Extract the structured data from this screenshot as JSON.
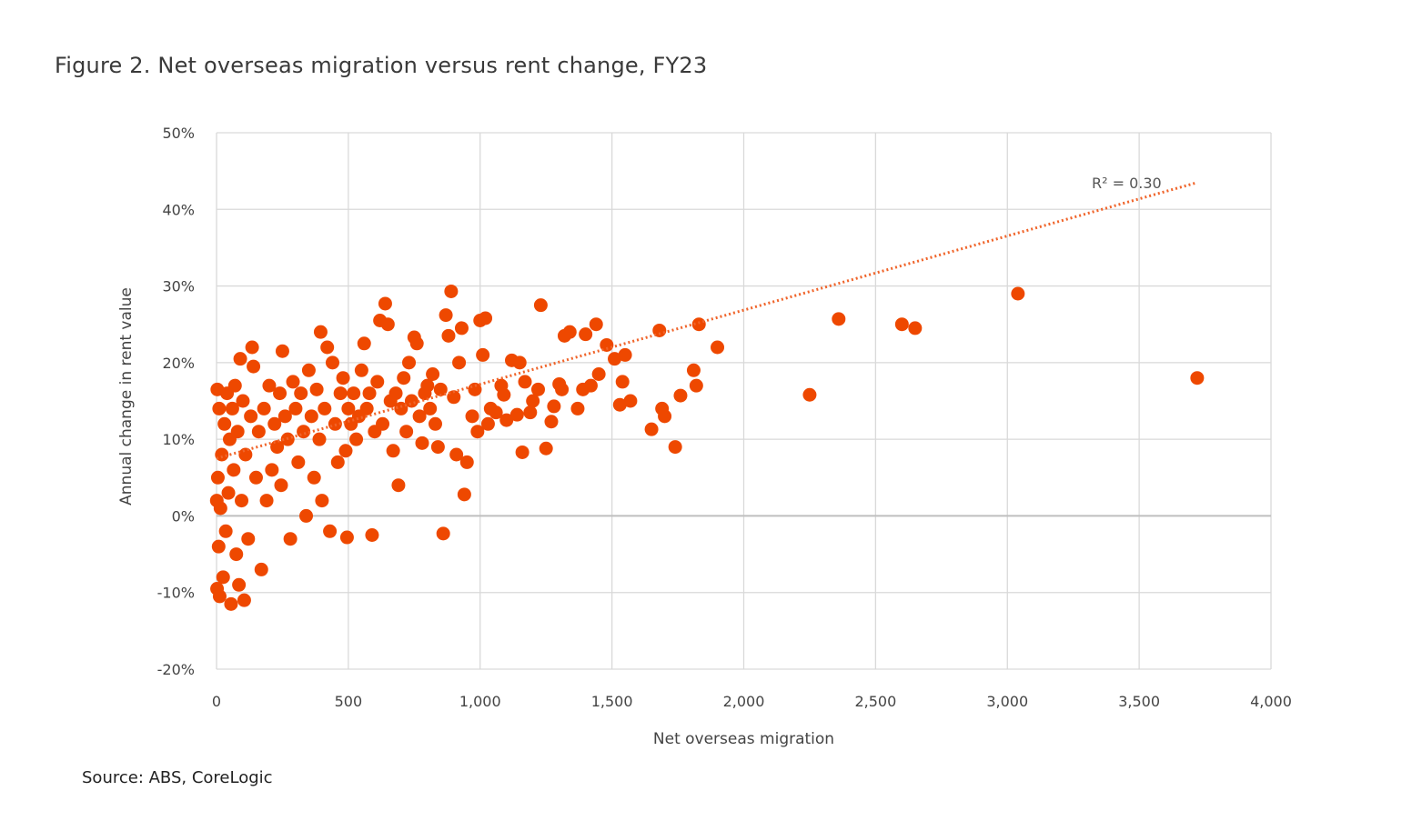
{
  "title": "Figure 2. Net overseas migration versus rent change, FY23",
  "source": "Source: ABS, CoreLogic",
  "colors": {
    "points": "#ee4800",
    "trendline": "#f0642a",
    "grid": "#d9d9d9",
    "zero_line": "#bfbfbf"
  },
  "chart_data": {
    "type": "scatter",
    "xlabel": "Net overseas migration",
    "ylabel": "Annual change in rent value",
    "xlim": [
      0,
      4000
    ],
    "ylim": [
      -0.2,
      0.5
    ],
    "x_ticks": [
      0,
      500,
      1000,
      1500,
      2000,
      2500,
      3000,
      3500,
      4000
    ],
    "x_tick_labels": [
      "0",
      "500",
      "1,000",
      "1,500",
      "2,000",
      "2,500",
      "3,000",
      "3,500",
      "4,000"
    ],
    "y_ticks": [
      -0.2,
      -0.1,
      0,
      0.1,
      0.2,
      0.3,
      0.4,
      0.5
    ],
    "y_tick_labels": [
      "-20%",
      "-10%",
      "0%",
      "10%",
      "20%",
      "30%",
      "40%",
      "50%"
    ],
    "grid": true,
    "trendline": {
      "type": "linear",
      "style": "dotted",
      "x": [
        0,
        3720
      ],
      "y": [
        0.075,
        0.435
      ],
      "label": "R² = 0.30"
    },
    "series": [
      {
        "points": [
          [
            3720,
            0.18
          ],
          [
            3040,
            0.29
          ],
          [
            2650,
            0.245
          ],
          [
            2600,
            0.25
          ],
          [
            2360,
            0.257
          ],
          [
            2250,
            0.158
          ],
          [
            1900,
            0.22
          ],
          [
            1830,
            0.25
          ],
          [
            1820,
            0.17
          ],
          [
            1810,
            0.19
          ],
          [
            1760,
            0.157
          ],
          [
            1740,
            0.09
          ],
          [
            1700,
            0.13
          ],
          [
            1690,
            0.14
          ],
          [
            1680,
            0.242
          ],
          [
            1650,
            0.113
          ],
          [
            1570,
            0.15
          ],
          [
            1550,
            0.21
          ],
          [
            1540,
            0.175
          ],
          [
            1530,
            0.145
          ],
          [
            1510,
            0.205
          ],
          [
            1480,
            0.223
          ],
          [
            1450,
            0.185
          ],
          [
            1440,
            0.25
          ],
          [
            1420,
            0.17
          ],
          [
            1400,
            0.237
          ],
          [
            1390,
            0.165
          ],
          [
            1370,
            0.14
          ],
          [
            1340,
            0.24
          ],
          [
            1320,
            0.235
          ],
          [
            1310,
            0.165
          ],
          [
            1300,
            0.172
          ],
          [
            1280,
            0.143
          ],
          [
            1270,
            0.123
          ],
          [
            1250,
            0.088
          ],
          [
            1230,
            0.275
          ],
          [
            1220,
            0.165
          ],
          [
            1200,
            0.15
          ],
          [
            1190,
            0.135
          ],
          [
            1170,
            0.175
          ],
          [
            1160,
            0.083
          ],
          [
            1150,
            0.2
          ],
          [
            1140,
            0.132
          ],
          [
            1120,
            0.203
          ],
          [
            1100,
            0.125
          ],
          [
            1090,
            0.158
          ],
          [
            1080,
            0.17
          ],
          [
            1060,
            0.135
          ],
          [
            1040,
            0.14
          ],
          [
            1030,
            0.12
          ],
          [
            1020,
            0.258
          ],
          [
            1010,
            0.21
          ],
          [
            1000,
            0.255
          ],
          [
            990,
            0.11
          ],
          [
            980,
            0.165
          ],
          [
            970,
            0.13
          ],
          [
            950,
            0.07
          ],
          [
            940,
            0.028
          ],
          [
            930,
            0.245
          ],
          [
            920,
            0.2
          ],
          [
            910,
            0.08
          ],
          [
            900,
            0.155
          ],
          [
            890,
            0.293
          ],
          [
            880,
            0.235
          ],
          [
            870,
            0.262
          ],
          [
            860,
            -0.023
          ],
          [
            850,
            0.165
          ],
          [
            840,
            0.09
          ],
          [
            830,
            0.12
          ],
          [
            820,
            0.185
          ],
          [
            810,
            0.14
          ],
          [
            800,
            0.17
          ],
          [
            790,
            0.16
          ],
          [
            780,
            0.095
          ],
          [
            770,
            0.13
          ],
          [
            760,
            0.225
          ],
          [
            750,
            0.233
          ],
          [
            740,
            0.15
          ],
          [
            730,
            0.2
          ],
          [
            720,
            0.11
          ],
          [
            710,
            0.18
          ],
          [
            700,
            0.14
          ],
          [
            690,
            0.04
          ],
          [
            680,
            0.16
          ],
          [
            670,
            0.085
          ],
          [
            660,
            0.15
          ],
          [
            650,
            0.25
          ],
          [
            640,
            0.277
          ],
          [
            630,
            0.12
          ],
          [
            620,
            0.255
          ],
          [
            610,
            0.175
          ],
          [
            600,
            0.11
          ],
          [
            590,
            -0.025
          ],
          [
            580,
            0.16
          ],
          [
            570,
            0.14
          ],
          [
            560,
            0.225
          ],
          [
            550,
            0.19
          ],
          [
            540,
            0.13
          ],
          [
            530,
            0.1
          ],
          [
            520,
            0.16
          ],
          [
            510,
            0.12
          ],
          [
            500,
            0.14
          ],
          [
            495,
            -0.028
          ],
          [
            490,
            0.085
          ],
          [
            480,
            0.18
          ],
          [
            470,
            0.16
          ],
          [
            460,
            0.07
          ],
          [
            450,
            0.12
          ],
          [
            440,
            0.2
          ],
          [
            430,
            -0.02
          ],
          [
            420,
            0.22
          ],
          [
            410,
            0.14
          ],
          [
            400,
            0.02
          ],
          [
            395,
            0.24
          ],
          [
            390,
            0.1
          ],
          [
            380,
            0.165
          ],
          [
            370,
            0.05
          ],
          [
            360,
            0.13
          ],
          [
            350,
            0.19
          ],
          [
            340,
            0.0
          ],
          [
            330,
            0.11
          ],
          [
            320,
            0.16
          ],
          [
            310,
            0.07
          ],
          [
            300,
            0.14
          ],
          [
            290,
            0.175
          ],
          [
            280,
            -0.03
          ],
          [
            270,
            0.1
          ],
          [
            260,
            0.13
          ],
          [
            250,
            0.215
          ],
          [
            245,
            0.04
          ],
          [
            240,
            0.16
          ],
          [
            230,
            0.09
          ],
          [
            220,
            0.12
          ],
          [
            210,
            0.06
          ],
          [
            200,
            0.17
          ],
          [
            190,
            0.02
          ],
          [
            180,
            0.14
          ],
          [
            170,
            -0.07
          ],
          [
            160,
            0.11
          ],
          [
            150,
            0.05
          ],
          [
            140,
            0.195
          ],
          [
            135,
            0.22
          ],
          [
            130,
            0.13
          ],
          [
            120,
            -0.03
          ],
          [
            110,
            0.08
          ],
          [
            105,
            -0.11
          ],
          [
            100,
            0.15
          ],
          [
            95,
            0.02
          ],
          [
            90,
            0.205
          ],
          [
            85,
            -0.09
          ],
          [
            80,
            0.11
          ],
          [
            75,
            -0.05
          ],
          [
            70,
            0.17
          ],
          [
            65,
            0.06
          ],
          [
            60,
            0.14
          ],
          [
            55,
            -0.115
          ],
          [
            50,
            0.1
          ],
          [
            45,
            0.03
          ],
          [
            40,
            0.16
          ],
          [
            35,
            -0.02
          ],
          [
            30,
            0.12
          ],
          [
            25,
            -0.08
          ],
          [
            20,
            0.08
          ],
          [
            15,
            0.01
          ],
          [
            12,
            -0.105
          ],
          [
            10,
            0.14
          ],
          [
            8,
            -0.04
          ],
          [
            5,
            0.05
          ],
          [
            3,
            0.165
          ],
          [
            2,
            -0.095
          ],
          [
            1,
            0.02
          ]
        ]
      }
    ]
  }
}
